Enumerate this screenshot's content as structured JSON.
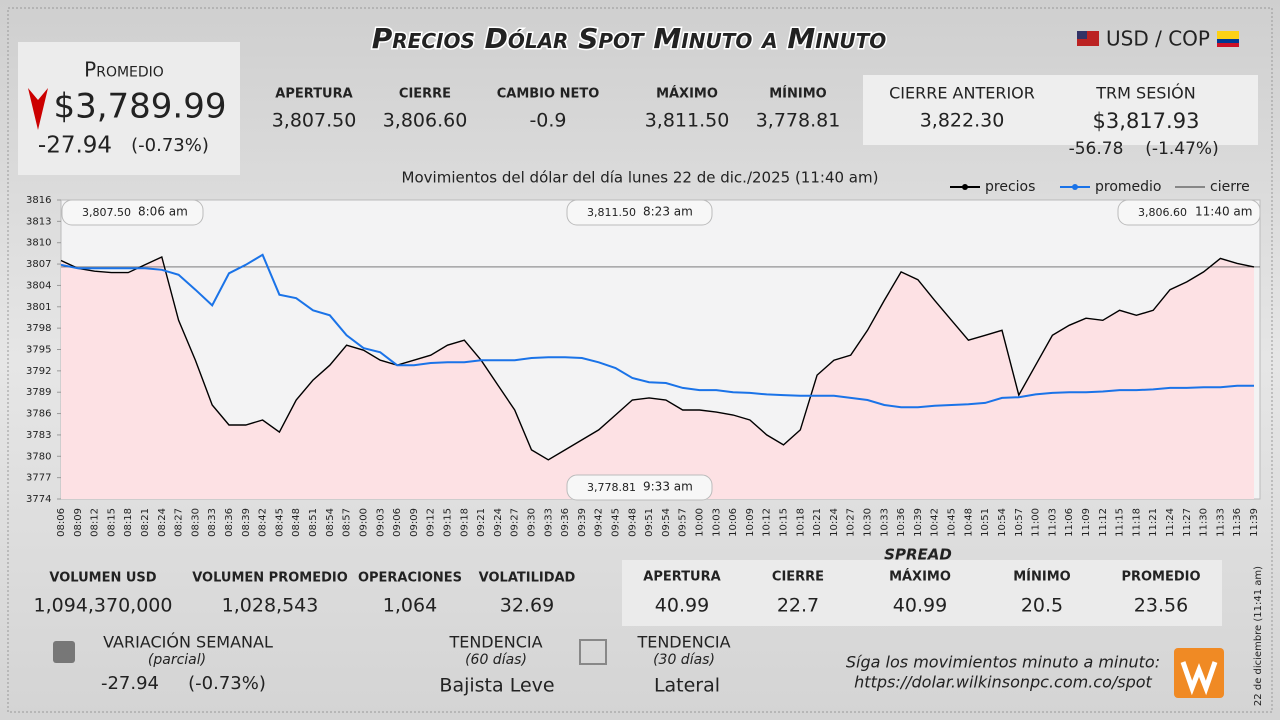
{
  "header": {
    "title": "Precios Dólar Spot Minuto a Minuto",
    "pair": "USD / COP"
  },
  "summary": {
    "label": "Promedio",
    "value": "$3,789.99",
    "change": "-27.94",
    "change_pct": "(-0.73%)"
  },
  "session": [
    {
      "label": "APERTURA",
      "value": "3,807.50"
    },
    {
      "label": "CIERRE",
      "value": "3,806.60"
    },
    {
      "label": "CAMBIO NETO",
      "value": "-0.9"
    },
    {
      "label": "MÁXIMO",
      "value": "3,811.50"
    },
    {
      "label": "MÍNIMO",
      "value": "3,778.81"
    }
  ],
  "previous": {
    "label": "CIERRE ANTERIOR",
    "value": "3,822.30"
  },
  "trm": {
    "label": "TRM SESIÓN",
    "value": "$3,817.93",
    "change": "-56.78",
    "change_pct": "(-1.47%)"
  },
  "chart_data": {
    "type": "line",
    "title": "Movimientos del dólar del día lunes 22 de dic./2025 (11:40 am)",
    "categories": [
      "08:06",
      "08:09",
      "08:12",
      "08:15",
      "08:18",
      "08:21",
      "08:24",
      "08:27",
      "08:30",
      "08:33",
      "08:36",
      "08:39",
      "08:42",
      "08:45",
      "08:48",
      "08:51",
      "08:54",
      "08:57",
      "09:00",
      "09:03",
      "09:06",
      "09:09",
      "09:12",
      "09:15",
      "09:18",
      "09:21",
      "09:24",
      "09:27",
      "09:30",
      "09:33",
      "09:36",
      "09:39",
      "09:42",
      "09:45",
      "09:48",
      "09:51",
      "09:54",
      "09:57",
      "10:00",
      "10:03",
      "10:06",
      "10:09",
      "10:12",
      "10:15",
      "10:18",
      "10:21",
      "10:24",
      "10:27",
      "10:30",
      "10:33",
      "10:36",
      "10:39",
      "10:42",
      "10:45",
      "10:48",
      "10:51",
      "10:54",
      "10:57",
      "11:00",
      "11:03",
      "11:06",
      "11:09",
      "11:12",
      "11:15",
      "11:18",
      "11:21",
      "11:24",
      "11:27",
      "11:30",
      "11:33",
      "11:36",
      "11:39"
    ],
    "series": [
      {
        "name": "precios",
        "color": "#000000",
        "values": [
          3807.5,
          3806.4,
          3806,
          3805.8,
          3805.8,
          3806.9,
          3808,
          3799.1,
          3793.5,
          3787.2,
          3784.4,
          3784.4,
          3785.1,
          3783.4,
          3787.9,
          3790.7,
          3792.8,
          3795.6,
          3794.9,
          3793.5,
          3792.8,
          3793.5,
          3794.2,
          3795.6,
          3796.3,
          3793.5,
          3790,
          3786.5,
          3780.9,
          3779.5,
          3780.9,
          3782.3,
          3783.7,
          3785.8,
          3787.9,
          3788.2,
          3787.9,
          3786.5,
          3786.5,
          3786.2,
          3785.8,
          3785.1,
          3783,
          3781.6,
          3783.7,
          3791.4,
          3793.5,
          3794.2,
          3797.7,
          3801.9,
          3805.9,
          3804.8,
          3801.9,
          3799.1,
          3796.3,
          3797,
          3797.7,
          3788.6,
          3792.8,
          3797,
          3798.4,
          3799.4,
          3799.1,
          3800.5,
          3799.8,
          3800.5,
          3803.4,
          3804.5,
          3805.9,
          3807.8,
          3807.1,
          3806.6
        ]
      },
      {
        "name": "promedio",
        "color": "#1a73e8",
        "values": [
          3806.9,
          3806.4,
          3806.4,
          3806.4,
          3806.4,
          3806.4,
          3806.2,
          3805.5,
          3803.4,
          3801.2,
          3805.7,
          3806.9,
          3808.3,
          3802.7,
          3802.2,
          3800.5,
          3799.8,
          3797,
          3795.2,
          3794.6,
          3792.8,
          3792.8,
          3793.1,
          3793.2,
          3793.2,
          3793.5,
          3793.5,
          3793.5,
          3793.8,
          3793.9,
          3793.9,
          3793.8,
          3793.2,
          3792.4,
          3791,
          3790.4,
          3790.3,
          3789.6,
          3789.3,
          3789.3,
          3789,
          3788.9,
          3788.7,
          3788.6,
          3788.5,
          3788.5,
          3788.5,
          3788.2,
          3787.9,
          3787.2,
          3786.9,
          3786.9,
          3787.1,
          3787.2,
          3787.3,
          3787.5,
          3788.2,
          3788.3,
          3788.7,
          3788.9,
          3789,
          3789,
          3789.1,
          3789.3,
          3789.3,
          3789.4,
          3789.6,
          3789.6,
          3789.7,
          3789.7,
          3789.9,
          3789.9
        ]
      }
    ],
    "reference_line": {
      "name": "cierre",
      "value": 3806.6,
      "color": "#333333"
    },
    "annotations": [
      {
        "value": "3,807.50",
        "time": "8:06 am"
      },
      {
        "value": "3,811.50",
        "time": "8:23 am"
      },
      {
        "value": "3,806.60",
        "time": "11:40 am"
      },
      {
        "value": "3,778.81",
        "time": "9:33 am"
      }
    ],
    "ylim": [
      3774,
      3816
    ],
    "yticks": [
      3774,
      3777,
      3780,
      3783,
      3786,
      3789,
      3792,
      3795,
      3798,
      3801,
      3804,
      3807,
      3810,
      3813,
      3816
    ],
    "grid": false
  },
  "volume": [
    {
      "label": "VOLUMEN USD",
      "value": "1,094,370,000"
    },
    {
      "label": "VOLUMEN PROMEDIO",
      "value": "1,028,543"
    },
    {
      "label": "OPERACIONES",
      "value": "1,064"
    },
    {
      "label": "VOLATILIDAD",
      "value": "32.69"
    }
  ],
  "spread": {
    "title": "SPREAD",
    "items": [
      {
        "label": "APERTURA",
        "value": "40.99"
      },
      {
        "label": "CIERRE",
        "value": "22.7"
      },
      {
        "label": "MÁXIMO",
        "value": "40.99"
      },
      {
        "label": "MÍNIMO",
        "value": "20.5"
      },
      {
        "label": "PROMEDIO",
        "value": "23.56"
      }
    ]
  },
  "weekly": {
    "label": "VARIACIÓN SEMANAL",
    "period": "(parcial)",
    "change": "-27.94",
    "change_pct": "(-0.73%)"
  },
  "trend60": {
    "label": "TENDENCIA",
    "period": "(60 días)",
    "value": "Bajista Leve"
  },
  "trend30": {
    "label": "TENDENCIA",
    "period": "(30 días)",
    "value": "Lateral"
  },
  "follow": {
    "text": "Síga los movimientos minuto a minuto:",
    "url": "https://dolar.wilkinsonpc.com.co/spot"
  },
  "stamp": "22 de diciembre (11:41 am)"
}
